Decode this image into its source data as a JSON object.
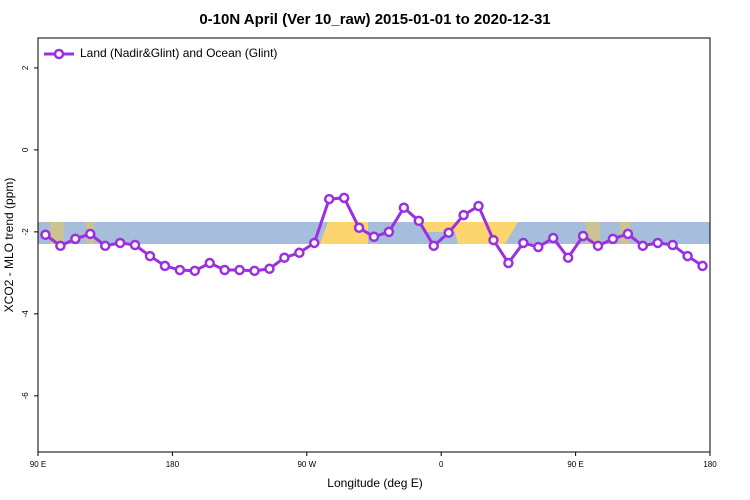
{
  "chart_data": {
    "type": "line",
    "title": "0-10N April (Ver 10_raw)   2015-01-01 to 2020-12-31",
    "x_label": "Longitude (deg E)",
    "y_label": "XCO2 - MLO trend (ppm)",
    "x": [
      95,
      105,
      115,
      125,
      135,
      145,
      155,
      165,
      175,
      185,
      195,
      205,
      215,
      225,
      235,
      245,
      255,
      265,
      275,
      285,
      295,
      305,
      315,
      325,
      335,
      345,
      355,
      365,
      375,
      385,
      395,
      405,
      415,
      425,
      435,
      445,
      455,
      465,
      475,
      485,
      495,
      505,
      515,
      525,
      535
    ],
    "series": [
      {
        "name": "Land (Nadir&Glint) and Ocean (Glint)",
        "color": "#9b30e0",
        "values": [
          -2.07,
          -2.34,
          -2.17,
          -2.05,
          -2.34,
          -2.27,
          -2.32,
          -2.59,
          -2.83,
          -2.93,
          -2.95,
          -2.76,
          -2.93,
          -2.93,
          -2.95,
          -2.9,
          -2.63,
          -2.51,
          -2.27,
          -1.2,
          -1.17,
          -1.9,
          -2.12,
          -2.0,
          -1.41,
          -1.73,
          -2.34,
          -2.02,
          -1.59,
          -1.37,
          -2.2,
          -2.76,
          -2.27,
          -2.37,
          -2.15,
          -2.63,
          -2.1,
          -2.34,
          -2.17,
          -2.05,
          -2.34,
          -2.27,
          -2.32,
          -2.59,
          -2.83
        ]
      }
    ],
    "xlim": [
      90,
      540
    ],
    "xticks": [
      {
        "value": 90,
        "label": "90 E"
      },
      {
        "value": 180,
        "label": "180"
      },
      {
        "value": 270,
        "label": "90 W"
      },
      {
        "value": 360,
        "label": "0"
      },
      {
        "value": 450,
        "label": "90 E"
      },
      {
        "value": 540,
        "label": "180"
      }
    ],
    "ylim": [
      -7.37,
      2.73
    ],
    "yticks": [
      -6,
      -4,
      -2,
      0,
      2
    ],
    "legend": "top-left"
  }
}
